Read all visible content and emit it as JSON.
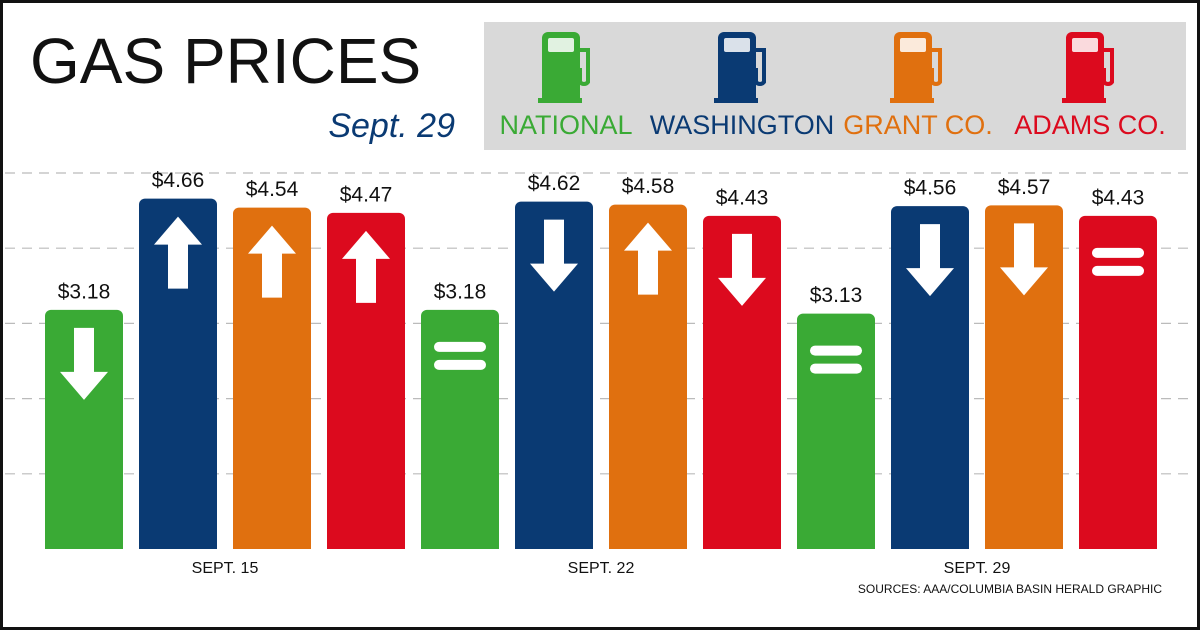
{
  "chart_data": {
    "type": "bar",
    "title": "GAS PRICES",
    "subtitle": "Sept. 29",
    "source": "SOURCES: AAA/COLUMBIA BASIN HERALD GRAPHIC",
    "categories": [
      "SEPT. 15",
      "SEPT. 22",
      "SEPT. 29"
    ],
    "series": [
      {
        "name": "NATIONAL",
        "color": "#3aaa35",
        "values": [
          3.18,
          3.18,
          3.13
        ],
        "value_labels": [
          "$3.18",
          "$3.18",
          "$3.13"
        ],
        "trends": [
          "down",
          "same",
          "same"
        ]
      },
      {
        "name": "WASHINGTON",
        "color": "#0a3a73",
        "values": [
          4.66,
          4.62,
          4.56
        ],
        "value_labels": [
          "$4.66",
          "$4.62",
          "$4.56"
        ],
        "trends": [
          "up",
          "down",
          "down"
        ]
      },
      {
        "name": "GRANT CO.",
        "color": "#e0700f",
        "values": [
          4.54,
          4.58,
          4.57
        ],
        "value_labels": [
          "$4.54",
          "$4.58",
          "$4.57"
        ],
        "trends": [
          "up",
          "up",
          "down"
        ]
      },
      {
        "name": "ADAMS CO.",
        "color": "#dc0a1e",
        "values": [
          4.47,
          4.43,
          4.43
        ],
        "value_labels": [
          "$4.47",
          "$4.43",
          "$4.43"
        ],
        "trends": [
          "up",
          "down",
          "same"
        ]
      }
    ],
    "ylim": [
      0,
      5
    ],
    "yticks": [
      0,
      1,
      2,
      3,
      4,
      5
    ],
    "grid": true
  }
}
